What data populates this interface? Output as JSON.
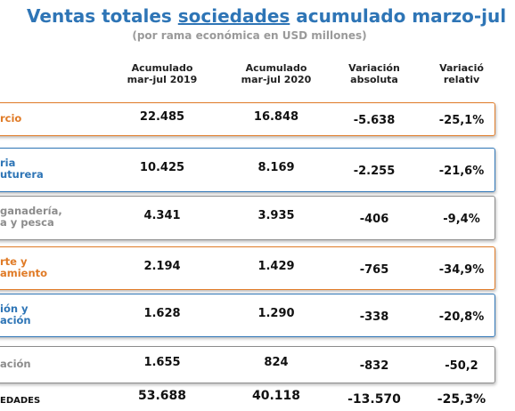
{
  "header": {
    "title": {
      "before": "Ventas totales ",
      "underlined": "sociedades",
      "after": " acumulado marzo-jul"
    },
    "subtitle": "(por rama económica en USD millones)"
  },
  "table": {
    "columns": [
      [
        "Acumulado",
        "mar-jul 2019"
      ],
      [
        "Acumulado",
        "mar-jul 2020"
      ],
      [
        "Variación",
        "absoluta"
      ],
      [
        "Variació",
        "relativ"
      ]
    ],
    "rows": [
      {
        "label": [
          "rcio"
        ],
        "values": [
          "22.485",
          "16.848",
          "-5.638",
          "-25,1%"
        ]
      },
      {
        "label": [
          "ria",
          "uturera"
        ],
        "values": [
          "10.425",
          "8.169",
          "-2.255",
          "-21,6%"
        ]
      },
      {
        "label": [
          "ganadería,",
          "a y pesca"
        ],
        "values": [
          "4.341",
          "3.935",
          "-406",
          "-9,4%"
        ]
      },
      {
        "label": [
          "rte y",
          "amiento"
        ],
        "values": [
          "2.194",
          "1.429",
          "-765",
          "-34,9%"
        ]
      },
      {
        "label": [
          "ión y",
          "ación"
        ],
        "values": [
          "1.628",
          "1.290",
          "-338",
          "-20,8%"
        ]
      },
      {
        "label": [
          "ación"
        ],
        "values": [
          "1.655",
          "824",
          "-832",
          "-50,2"
        ]
      }
    ],
    "total": {
      "label": [
        "EDADES"
      ],
      "values": [
        "53.688",
        "40.118",
        "-13.570",
        "-25,3%"
      ]
    }
  }
}
